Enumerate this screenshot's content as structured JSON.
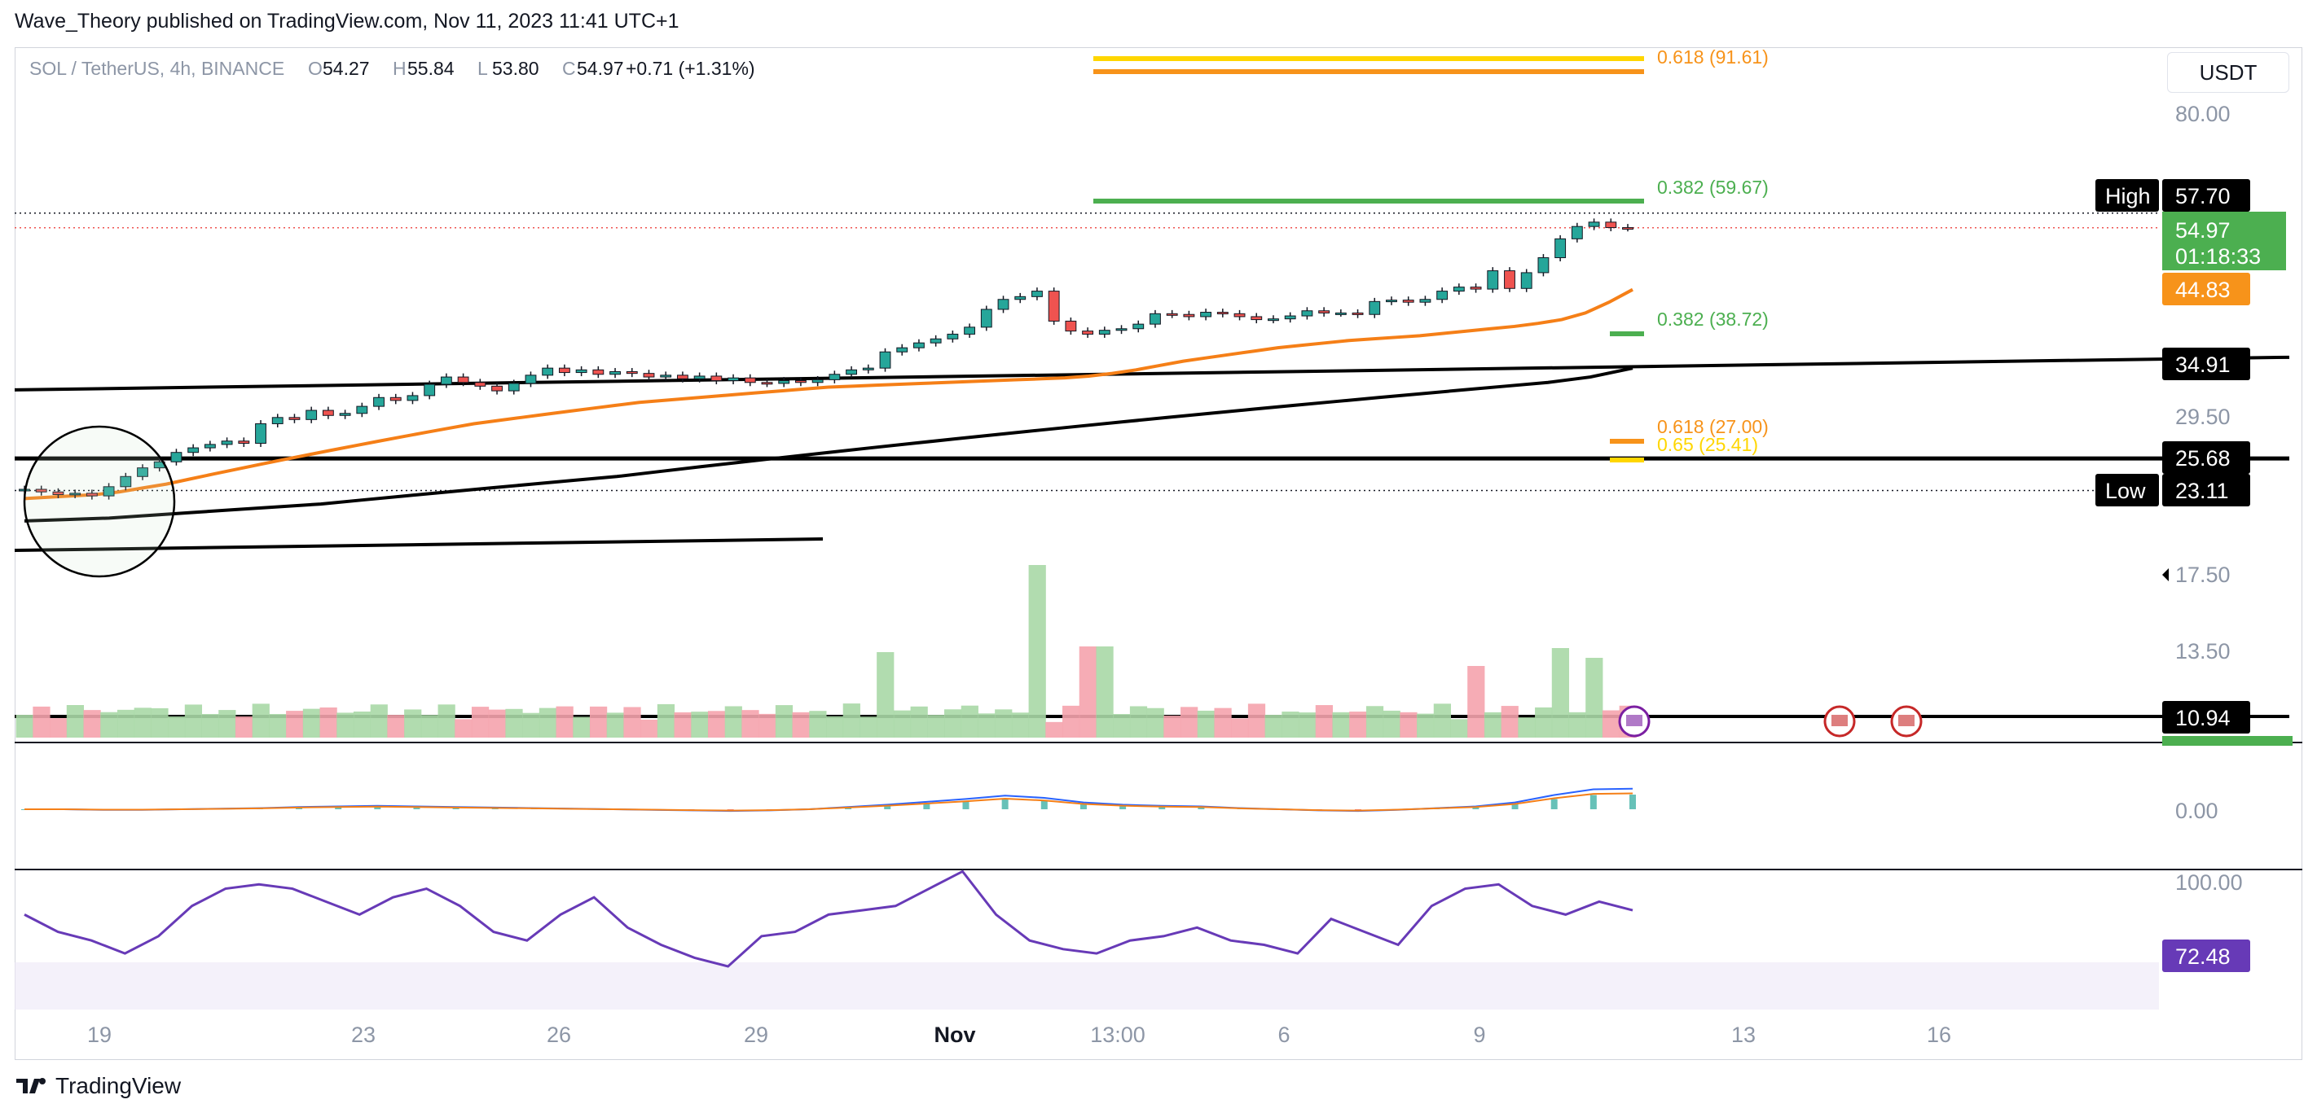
{
  "header": {
    "publisher_line": "Wave_Theory published on TradingView.com, Nov 11, 2023 11:41 UTC+1",
    "symbol": "SOL / TetherUS, 4h, BINANCE",
    "ohlc": [
      {
        "label": "O",
        "value": "54.27"
      },
      {
        "label": "H",
        "value": "55.84"
      },
      {
        "label": "L",
        "value": "53.80"
      },
      {
        "label": "C",
        "value": "54.97"
      }
    ],
    "change": "+0.71 (+1.31%)",
    "currency": "USDT"
  },
  "footer": {
    "brand": "TradingView"
  },
  "colors": {
    "up": "#26a69a",
    "down": "#ef5350",
    "upVol": "#a8d8a6",
    "downVol": "#f5a3ad",
    "ema_orange": "#f57f17",
    "ema_black": "#000000",
    "fib_green": "#4caf50",
    "fib_orange": "#f7931a",
    "fib_yellow": "#ffd600",
    "macd_blue": "#2962ff",
    "rsi": "#673ab7",
    "price_green": "#4caf50"
  },
  "chart_data": {
    "type": "candlestick",
    "symbol": "SOL / TetherUS",
    "interval": "4h",
    "exchange": "BINANCE",
    "x_ticks": [
      "19",
      "23",
      "26",
      "29",
      "Nov",
      "13:00",
      "6",
      "9",
      "13",
      "16"
    ],
    "y_ticks": [
      "80.00",
      "29.50",
      "17.50",
      "13.50",
      "0.00",
      "100.00"
    ],
    "y_scale": "log",
    "axis_labels": [
      {
        "text": "High",
        "value": "57.70"
      },
      {
        "text": "",
        "value": "54.97"
      },
      {
        "text": "",
        "value": "01:18:33"
      },
      {
        "text": "",
        "value": "44.83"
      },
      {
        "text": "",
        "value": "34.91"
      },
      {
        "text": "",
        "value": "25.68"
      },
      {
        "text": "Low",
        "value": "23.11"
      },
      {
        "text": "",
        "value": "10.94"
      },
      {
        "text": "",
        "value": "72.48"
      }
    ],
    "fib_levels": [
      {
        "label": "0.618 (91.61)",
        "value": 91.61,
        "color": "orange"
      },
      {
        "label": "0.382 (59.67)",
        "value": 59.67,
        "color": "green"
      },
      {
        "label": "0.382 (38.72)",
        "value": 38.72,
        "color": "green"
      },
      {
        "label": "0.618 (27.00)",
        "value": 27.0,
        "color": "orange"
      },
      {
        "label": "0.65 (25.41)",
        "value": 25.41,
        "color": "yellow"
      }
    ],
    "horizontal_lines": [
      34.91,
      25.68,
      10.94
    ],
    "closes": [
      23.2,
      23.0,
      22.8,
      22.9,
      22.7,
      23.4,
      24.2,
      24.9,
      25.4,
      26.2,
      26.6,
      26.9,
      27.2,
      27.0,
      28.8,
      29.4,
      29.2,
      30.1,
      29.6,
      29.8,
      30.5,
      31.4,
      31.1,
      31.6,
      32.8,
      33.6,
      33.0,
      32.6,
      32.1,
      32.9,
      33.8,
      34.6,
      34.1,
      34.4,
      33.9,
      34.2,
      34.0,
      33.6,
      33.8,
      33.4,
      33.7,
      33.2,
      33.5,
      33.0,
      32.9,
      33.2,
      33.0,
      33.3,
      33.9,
      34.4,
      34.6,
      36.5,
      37.0,
      37.6,
      38.1,
      38.7,
      39.6,
      42.0,
      43.4,
      43.8,
      44.6,
      40.4,
      39.1,
      38.7,
      39.2,
      39.4,
      40.0,
      41.4,
      41.3,
      41.0,
      41.6,
      41.4,
      41.0,
      40.6,
      40.7,
      41.1,
      41.8,
      41.5,
      41.5,
      41.3,
      43.1,
      43.3,
      43.0,
      43.4,
      44.6,
      45.2,
      44.9,
      47.7,
      45.0,
      47.4,
      49.8,
      53.0,
      55.2,
      56.0,
      55.0,
      54.97
    ],
    "series": [
      {
        "name": "",
        "description": "EMA (orange)",
        "values": [
          22.5,
          22.6,
          22.7,
          22.8,
          23.0,
          23.3,
          23.6,
          24.0,
          24.4,
          24.8,
          25.2,
          25.6,
          26.0,
          26.4,
          26.8,
          27.2,
          27.6,
          28.0,
          28.4,
          28.8,
          29.1,
          29.4,
          29.7,
          30.0,
          30.3,
          30.6,
          30.9,
          31.1,
          31.3,
          31.5,
          31.7,
          31.9,
          32.1,
          32.3,
          32.5,
          32.6,
          32.7,
          32.8,
          32.9,
          33.0,
          33.1,
          33.2,
          33.3,
          33.4,
          33.5,
          33.7,
          34.0,
          34.4,
          34.9,
          35.4,
          35.8,
          36.2,
          36.6,
          37.0,
          37.3,
          37.6,
          37.9,
          38.1,
          38.3,
          38.5,
          38.8,
          39.1,
          39.4,
          39.7,
          40.1,
          40.6,
          41.5,
          43.0,
          44.83
        ]
      },
      {
        "name": "",
        "description": "EMA (black)",
        "values": [
          20.9,
          21.0,
          21.1,
          21.3,
          21.5,
          21.7,
          21.9,
          22.1,
          22.4,
          22.7,
          23.0,
          23.3,
          23.6,
          23.9,
          24.2,
          24.6,
          25.0,
          25.4,
          25.8,
          26.2,
          26.6,
          27.0,
          27.4,
          27.8,
          28.2,
          28.6,
          29.0,
          29.4,
          29.8,
          30.2,
          30.6,
          31.0,
          31.4,
          31.8,
          32.2,
          32.6,
          33.0,
          33.6,
          34.6
        ]
      },
      {
        "name": "",
        "description": "MACD line",
        "values": [
          0,
          0,
          -0.1,
          -0.1,
          0,
          0.1,
          0.2,
          0.4,
          0.5,
          0.6,
          0.5,
          0.4,
          0.3,
          0.2,
          0.1,
          0,
          -0.1,
          -0.2,
          -0.3,
          -0.2,
          0,
          0.4,
          0.8,
          1.3,
          1.8,
          2.4,
          2.0,
          1.2,
          0.8,
          0.6,
          0.5,
          0.2,
          0,
          -0.2,
          -0.3,
          -0.1,
          0.2,
          0.5,
          1.2,
          2.5,
          3.5,
          3.6
        ]
      },
      {
        "name": "",
        "description": "RSI",
        "values": [
          58,
          50,
          46,
          40,
          48,
          62,
          70,
          72,
          70,
          64,
          58,
          66,
          70,
          62,
          50,
          46,
          58,
          66,
          52,
          44,
          38,
          34,
          48,
          50,
          58,
          60,
          62,
          70,
          78,
          58,
          46,
          42,
          40,
          46,
          48,
          52,
          46,
          44,
          40,
          56,
          50,
          44,
          62,
          70,
          72,
          62,
          58,
          64,
          60
        ]
      }
    ],
    "rsi_band": [
      30,
      70
    ],
    "grid": false
  }
}
